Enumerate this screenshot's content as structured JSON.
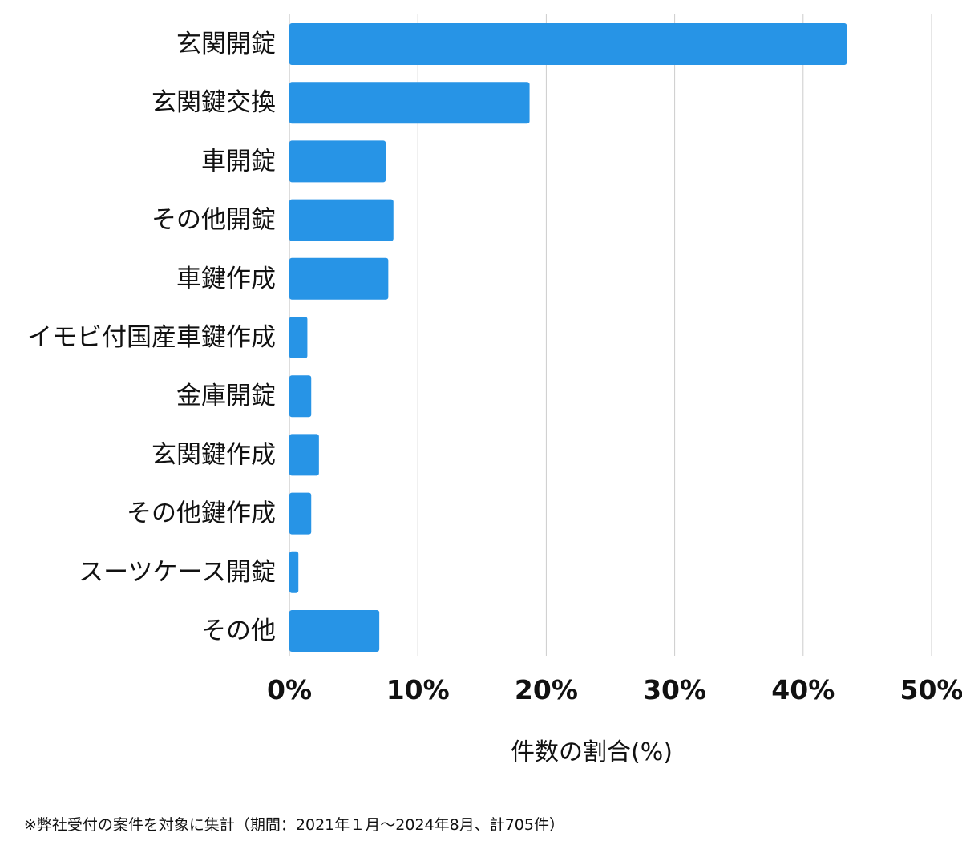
{
  "chart_data": {
    "type": "bar",
    "orientation": "horizontal",
    "categories": [
      "玄関開錠",
      "玄関鍵交換",
      "車開錠",
      "その他開錠",
      "車鍵作成",
      "イモビ付国産車鍵作成",
      "金庫開錠",
      "玄関鍵作成",
      "その他鍵作成",
      "スーツケース開錠",
      "その他"
    ],
    "values": [
      43.4,
      18.7,
      7.5,
      8.1,
      7.7,
      1.4,
      1.7,
      2.3,
      1.7,
      0.7,
      7.0
    ],
    "xlim": [
      0,
      50
    ],
    "xticks": [
      0,
      10,
      20,
      30,
      40,
      50
    ],
    "xtick_labels": [
      "0%",
      "10%",
      "20%",
      "30%",
      "40%",
      "50%"
    ],
    "xlabel": "件数の割合(%)",
    "ylabel": "",
    "title": "",
    "grid": "vertical",
    "bar_color": "#2794e6",
    "grid_color": "#cccccc"
  },
  "footnote": "※弊社受付の案件を対象に集計（期間：2021年１月〜2024年8月、計705件）"
}
